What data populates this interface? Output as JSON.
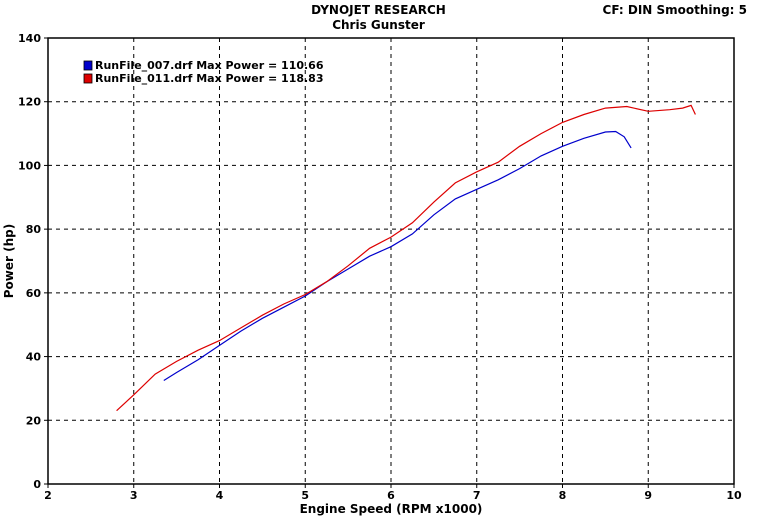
{
  "header": {
    "title": "DYNOJET RESEARCH",
    "subtitle": "Chris Gunster",
    "cf_info": "CF: DIN  Smoothing: 5"
  },
  "chart_data": {
    "type": "line",
    "xlabel": "Engine Speed (RPM x1000)",
    "ylabel": "Power (hp)",
    "xlim": [
      2,
      10
    ],
    "ylim": [
      0,
      140
    ],
    "xticks": [
      2,
      3,
      4,
      5,
      6,
      7,
      8,
      9,
      10
    ],
    "yticks": [
      0,
      20,
      40,
      60,
      80,
      100,
      120,
      140
    ],
    "grid": true,
    "legend_position": "top-left",
    "series": [
      {
        "name": "RunFile_007.drf Max Power = 110.66",
        "color": "#0000cc",
        "x": [
          3.35,
          3.5,
          3.75,
          4.0,
          4.25,
          4.5,
          4.75,
          5.0,
          5.25,
          5.5,
          5.75,
          6.0,
          6.25,
          6.5,
          6.75,
          7.0,
          7.25,
          7.5,
          7.75,
          8.0,
          8.25,
          8.5,
          8.62,
          8.72,
          8.8
        ],
        "values": [
          32.5,
          35.0,
          39.0,
          43.5,
          48.0,
          52.0,
          55.5,
          59.0,
          63.5,
          67.5,
          71.5,
          74.5,
          78.5,
          84.5,
          89.5,
          92.5,
          95.5,
          99.0,
          103.0,
          106.0,
          108.5,
          110.5,
          110.66,
          109.0,
          105.5
        ]
      },
      {
        "name": "RunFile_011.drf Max Power = 118.83",
        "color": "#dd0000",
        "x": [
          2.8,
          3.0,
          3.25,
          3.5,
          3.75,
          4.0,
          4.25,
          4.5,
          4.75,
          5.0,
          5.25,
          5.5,
          5.75,
          6.0,
          6.25,
          6.5,
          6.75,
          7.0,
          7.25,
          7.5,
          7.75,
          8.0,
          8.25,
          8.5,
          8.75,
          9.0,
          9.25,
          9.4,
          9.5,
          9.55
        ],
        "values": [
          23.0,
          28.0,
          34.5,
          38.5,
          42.0,
          45.0,
          49.0,
          53.0,
          56.5,
          59.5,
          63.5,
          68.5,
          74.0,
          77.5,
          82.0,
          88.5,
          94.5,
          98.0,
          101.0,
          106.0,
          110.0,
          113.5,
          116.0,
          118.0,
          118.5,
          117.0,
          117.5,
          118.0,
          118.83,
          116.0
        ]
      }
    ]
  }
}
